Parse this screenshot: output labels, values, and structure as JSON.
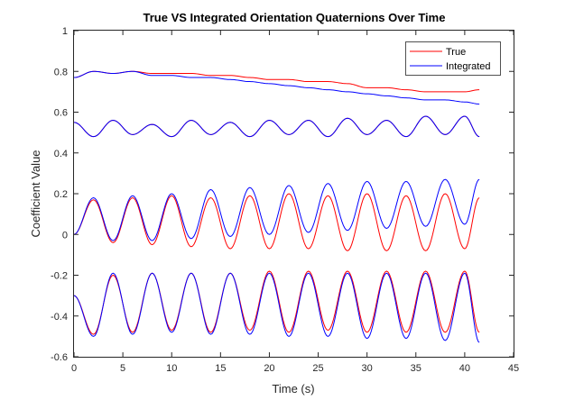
{
  "chart_data": {
    "type": "line",
    "title": "True VS Integrated Orientation Quaternions Over Time",
    "xlabel": "Time (s)",
    "ylabel": "Coefficient Value",
    "xlim": [
      0,
      45
    ],
    "ylim": [
      -0.6,
      1
    ],
    "xticks": [
      "0",
      "5",
      "10",
      "15",
      "20",
      "25",
      "30",
      "35",
      "40",
      "45"
    ],
    "yticks": [
      "-0.6",
      "-0.4",
      "-0.2",
      "0",
      "0.2",
      "0.4",
      "0.6",
      "0.8",
      "1"
    ],
    "grid": false,
    "legend_position": "top-right",
    "duration": 41.5,
    "series": [
      {
        "name": "True",
        "color": "#ff0000",
        "components": [
          {
            "x": [
              0,
              2,
              4,
              6,
              8,
              10,
              12,
              14,
              16,
              18,
              20,
              22,
              24,
              26,
              28,
              30,
              32,
              34,
              36,
              38,
              40,
              41.5
            ],
            "y": [
              0.77,
              0.8,
              0.79,
              0.8,
              0.79,
              0.79,
              0.79,
              0.78,
              0.78,
              0.77,
              0.76,
              0.76,
              0.75,
              0.75,
              0.74,
              0.72,
              0.72,
              0.71,
              0.7,
              0.7,
              0.7,
              0.71
            ]
          },
          {
            "x": [
              0,
              2,
              4,
              6,
              8,
              10,
              12,
              14,
              16,
              18,
              20,
              22,
              24,
              26,
              28,
              30,
              32,
              34,
              36,
              38,
              40,
              41.5
            ],
            "y": [
              0.55,
              0.48,
              0.56,
              0.49,
              0.54,
              0.48,
              0.56,
              0.49,
              0.55,
              0.48,
              0.56,
              0.49,
              0.56,
              0.48,
              0.57,
              0.49,
              0.56,
              0.48,
              0.58,
              0.49,
              0.58,
              0.48
            ]
          },
          {
            "x": [
              0,
              2,
              4,
              6,
              8,
              10,
              12,
              14,
              16,
              18,
              20,
              22,
              24,
              26,
              28,
              30,
              32,
              34,
              36,
              38,
              40,
              41.5
            ],
            "y": [
              0.0,
              0.17,
              -0.04,
              0.18,
              -0.05,
              0.19,
              -0.06,
              0.18,
              -0.07,
              0.19,
              -0.07,
              0.2,
              -0.07,
              0.19,
              -0.08,
              0.2,
              -0.08,
              0.19,
              -0.08,
              0.2,
              -0.07,
              0.18
            ]
          },
          {
            "x": [
              0,
              2,
              4,
              6,
              8,
              10,
              12,
              14,
              16,
              18,
              20,
              22,
              24,
              26,
              28,
              30,
              32,
              34,
              36,
              38,
              40,
              41.5
            ],
            "y": [
              -0.3,
              -0.49,
              -0.2,
              -0.48,
              -0.19,
              -0.47,
              -0.19,
              -0.48,
              -0.19,
              -0.47,
              -0.18,
              -0.48,
              -0.18,
              -0.47,
              -0.18,
              -0.48,
              -0.18,
              -0.48,
              -0.18,
              -0.48,
              -0.18,
              -0.48
            ]
          }
        ]
      },
      {
        "name": "Integrated",
        "color": "#0000ff",
        "components": [
          {
            "x": [
              0,
              2,
              4,
              6,
              8,
              10,
              12,
              14,
              16,
              18,
              20,
              22,
              24,
              26,
              28,
              30,
              32,
              34,
              36,
              38,
              40,
              41.5
            ],
            "y": [
              0.77,
              0.8,
              0.79,
              0.8,
              0.78,
              0.78,
              0.77,
              0.77,
              0.76,
              0.75,
              0.74,
              0.73,
              0.72,
              0.71,
              0.7,
              0.69,
              0.68,
              0.67,
              0.66,
              0.66,
              0.65,
              0.64
            ]
          },
          {
            "x": [
              0,
              2,
              4,
              6,
              8,
              10,
              12,
              14,
              16,
              18,
              20,
              22,
              24,
              26,
              28,
              30,
              32,
              34,
              36,
              38,
              40,
              41.5
            ],
            "y": [
              0.55,
              0.48,
              0.56,
              0.49,
              0.54,
              0.48,
              0.56,
              0.49,
              0.55,
              0.48,
              0.56,
              0.49,
              0.56,
              0.48,
              0.57,
              0.49,
              0.56,
              0.48,
              0.58,
              0.49,
              0.58,
              0.48
            ]
          },
          {
            "x": [
              0,
              2,
              4,
              6,
              8,
              10,
              12,
              14,
              16,
              18,
              20,
              22,
              24,
              26,
              28,
              30,
              32,
              34,
              36,
              38,
              40,
              41.5
            ],
            "y": [
              0.0,
              0.18,
              -0.03,
              0.19,
              -0.03,
              0.2,
              -0.02,
              0.22,
              -0.01,
              0.23,
              0.0,
              0.24,
              0.01,
              0.25,
              0.02,
              0.26,
              0.03,
              0.26,
              0.04,
              0.27,
              0.05,
              0.27
            ]
          },
          {
            "x": [
              0,
              2,
              4,
              6,
              8,
              10,
              12,
              14,
              16,
              18,
              20,
              22,
              24,
              26,
              28,
              30,
              32,
              34,
              36,
              38,
              40,
              41.5
            ],
            "y": [
              -0.3,
              -0.5,
              -0.19,
              -0.49,
              -0.19,
              -0.48,
              -0.19,
              -0.49,
              -0.19,
              -0.49,
              -0.19,
              -0.5,
              -0.19,
              -0.5,
              -0.19,
              -0.51,
              -0.19,
              -0.51,
              -0.19,
              -0.52,
              -0.19,
              -0.53
            ]
          }
        ]
      }
    ]
  }
}
